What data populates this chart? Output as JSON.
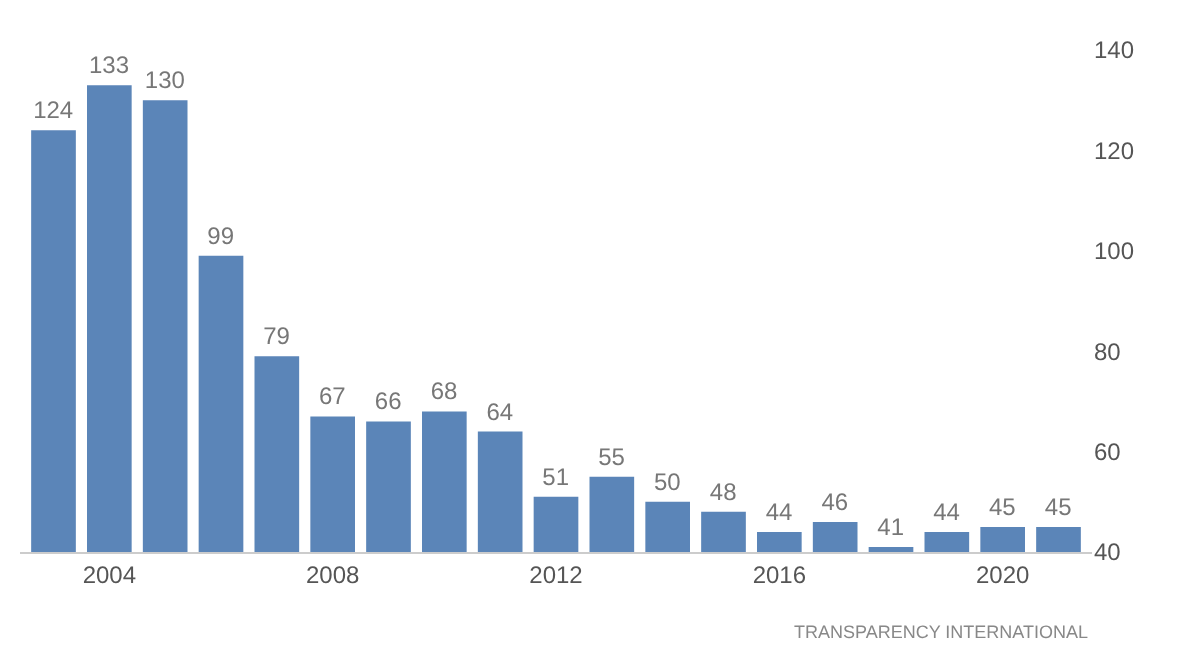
{
  "chart_data": {
    "type": "bar",
    "x": [
      2003,
      2004,
      2005,
      2006,
      2007,
      2008,
      2009,
      2010,
      2011,
      2012,
      2013,
      2014,
      2015,
      2016,
      2017,
      2018,
      2019,
      2020,
      2021
    ],
    "values": [
      124,
      133,
      130,
      99,
      79,
      67,
      66,
      68,
      64,
      51,
      55,
      50,
      48,
      44,
      46,
      41,
      44,
      45,
      45
    ],
    "color": "#5b85b8",
    "data_labels": true,
    "xlim": [
      2002.4,
      2021.6
    ],
    "xticks": [
      2004,
      2008,
      2012,
      2016,
      2020
    ],
    "ylim": [
      40,
      140
    ],
    "yticks": [
      40,
      60,
      80,
      100,
      120,
      140
    ],
    "legend": false,
    "annotations": [
      "TRANSPARENCY INTERNATIONAL"
    ]
  }
}
